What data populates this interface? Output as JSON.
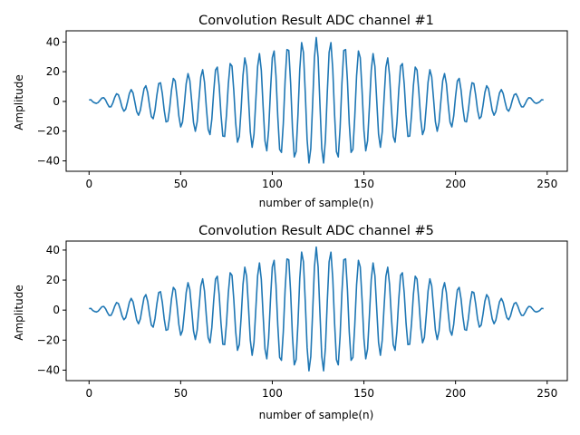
{
  "colors": {
    "line": "#1f77b4",
    "axes": "#000000",
    "background": "#ffffff"
  },
  "chart_data": [
    {
      "type": "line",
      "title": "Convolution Result ADC channel #1",
      "xlabel": "number of sample(n)",
      "ylabel": "Amplitude",
      "xlim": [
        -12.5,
        261
      ],
      "ylim": [
        -47,
        47.5
      ],
      "xticks": [
        0,
        50,
        100,
        150,
        200,
        250
      ],
      "yticks": [
        -40,
        -20,
        0,
        20,
        40
      ],
      "series": [
        {
          "n_samples": 249,
          "samples_per_cycle": 7.77,
          "peak_amplitude": 43,
          "peak_at_sample": 124,
          "start_value": 1,
          "end_value": 1
        }
      ]
    },
    {
      "type": "line",
      "title": "Convolution Result ADC channel #5",
      "xlabel": "number of sample(n)",
      "ylabel": "Amplitude",
      "xlim": [
        -12.5,
        261
      ],
      "ylim": [
        -47,
        46
      ],
      "xticks": [
        0,
        50,
        100,
        150,
        200,
        250
      ],
      "yticks": [
        -40,
        -20,
        0,
        20,
        40
      ],
      "series": [
        {
          "n_samples": 249,
          "samples_per_cycle": 7.77,
          "peak_amplitude": 42,
          "peak_at_sample": 124,
          "start_value": 1,
          "end_value": 1
        }
      ]
    }
  ]
}
